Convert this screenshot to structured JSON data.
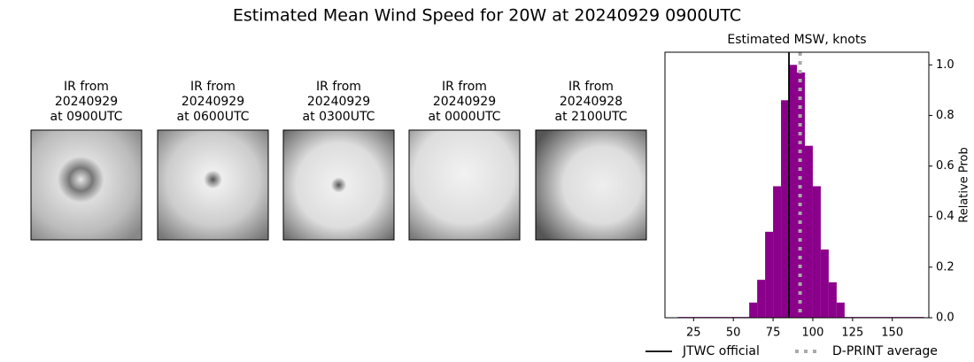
{
  "title": "Estimated Mean Wind Speed for 20W at 20240929 0900UTC",
  "panels": [
    {
      "lines": [
        "IR from",
        "20240929",
        "at 0900UTC"
      ]
    },
    {
      "lines": [
        "IR from",
        "20240929",
        "at 0600UTC"
      ]
    },
    {
      "lines": [
        "IR from",
        "20240929",
        "at 0300UTC"
      ]
    },
    {
      "lines": [
        "IR from",
        "20240929",
        "at 0000UTC"
      ]
    },
    {
      "lines": [
        "IR from",
        "20240928",
        "at 2100UTC"
      ]
    }
  ],
  "chart_data": {
    "type": "histogram",
    "title": "Estimated MSW, knots",
    "y_label": "Relative Prob",
    "color": "#8b008b",
    "bins": [
      15,
      20,
      25,
      30,
      35,
      40,
      45,
      50,
      55,
      60,
      65,
      70,
      75,
      80,
      85,
      90,
      95,
      100,
      105,
      110,
      115,
      120,
      125,
      130,
      135,
      140,
      145,
      150,
      155,
      160,
      165,
      170
    ],
    "values": [
      0.003,
      0.003,
      0.003,
      0.003,
      0.003,
      0.003,
      0.003,
      0.003,
      0.003,
      0.06,
      0.15,
      0.34,
      0.52,
      0.86,
      1.0,
      0.97,
      0.68,
      0.52,
      0.27,
      0.14,
      0.06,
      0.003,
      0.003,
      0.003,
      0.003,
      0.003,
      0.003,
      0.003,
      0.003,
      0.003,
      0.003
    ],
    "xlim": [
      7,
      173
    ],
    "xticks": [
      25,
      50,
      75,
      100,
      125,
      150
    ],
    "ylim": [
      0,
      1.05
    ],
    "yticks": [
      {
        "value": 0,
        "label": "0.0"
      },
      0.2,
      0.4,
      0.6,
      0.8,
      {
        "value": 1,
        "label": "1.0"
      }
    ],
    "lines": [
      {
        "name": "JTWC official",
        "value": 85,
        "color": "#000000",
        "dash": false
      },
      {
        "name": "D-PRINT average",
        "value": 92,
        "color": "#aaaaaa",
        "dash": true
      }
    ]
  }
}
